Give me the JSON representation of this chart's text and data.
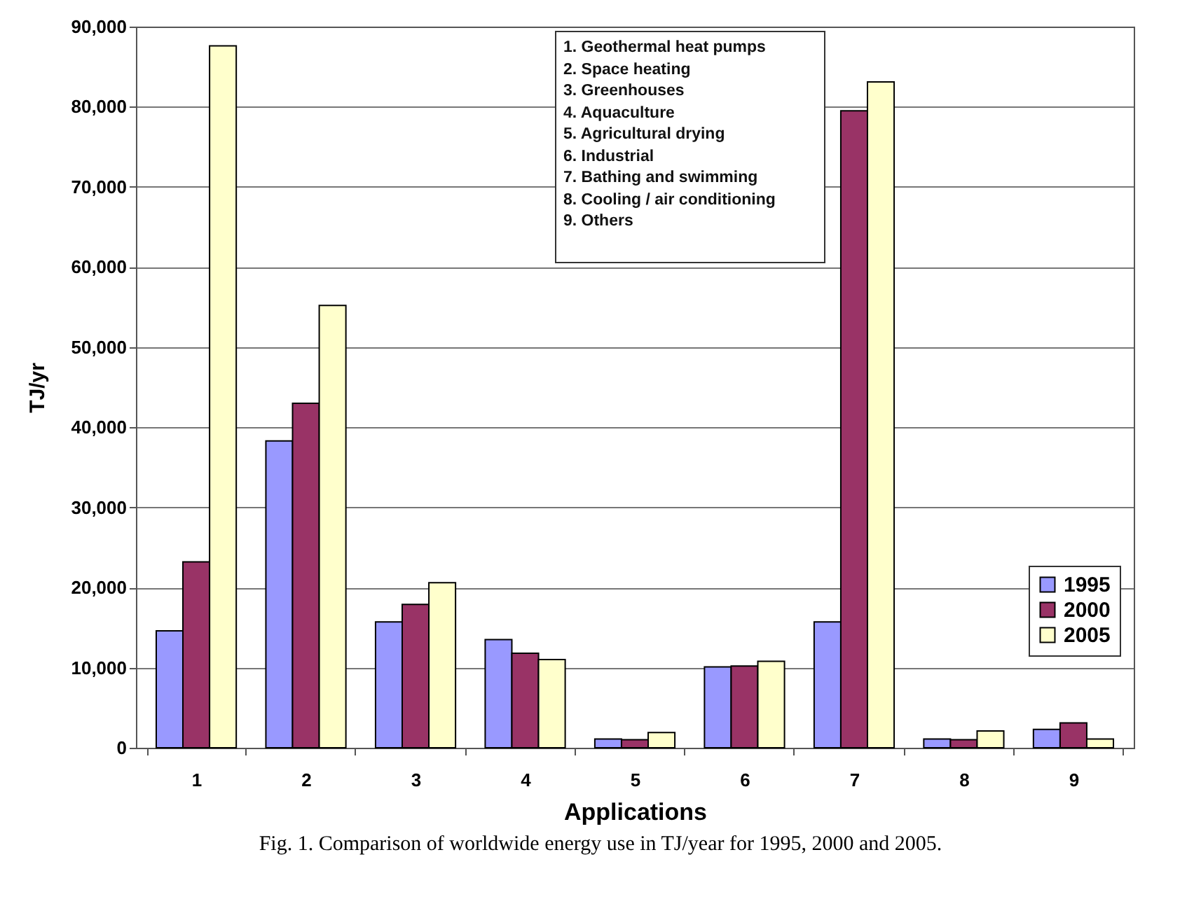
{
  "chart_data": {
    "type": "bar",
    "xlabel": "Applications",
    "ylabel": "TJ/yr",
    "categories": [
      "1",
      "2",
      "3",
      "4",
      "5",
      "6",
      "7",
      "8",
      "9"
    ],
    "series": [
      {
        "name": "1995",
        "color": "#9999ff",
        "values": [
          14600,
          38300,
          15700,
          13500,
          1100,
          10100,
          15700,
          1100,
          2300
        ]
      },
      {
        "name": "2000",
        "color": "#993366",
        "values": [
          23200,
          43000,
          17900,
          11800,
          1000,
          10200,
          79500,
          1000,
          3100
        ]
      },
      {
        "name": "2005",
        "color": "#ffffcc",
        "values": [
          87600,
          55200,
          20600,
          11000,
          1900,
          10800,
          83100,
          2100,
          1100
        ]
      }
    ],
    "ylim": [
      0,
      90000
    ],
    "yticks": [
      {
        "value": 0,
        "label": "0"
      },
      {
        "value": 10000,
        "label": "10,000"
      },
      {
        "value": 20000,
        "label": "20,000"
      },
      {
        "value": 30000,
        "label": "30,000"
      },
      {
        "value": 40000,
        "label": "40,000"
      },
      {
        "value": 50000,
        "label": "50,000"
      },
      {
        "value": 60000,
        "label": "60,000"
      },
      {
        "value": 70000,
        "label": "70,000"
      },
      {
        "value": 80000,
        "label": "80,000"
      },
      {
        "value": 90000,
        "label": "90,000"
      }
    ],
    "grid": "y",
    "legend": "bottom right",
    "annotations": [
      "1.  Geothermal heat pumps",
      "2.  Space heating",
      "3.  Greenhouses",
      "4.  Aquaculture",
      "5.  Agricultural drying",
      "6.  Industrial",
      "7.  Bathing and swimming",
      "8.  Cooling / air conditioning",
      "9.  Others",
      "Fig. 1.  Comparison of worldwide energy use in TJ/year for 1995, 2000 and 2005."
    ]
  }
}
